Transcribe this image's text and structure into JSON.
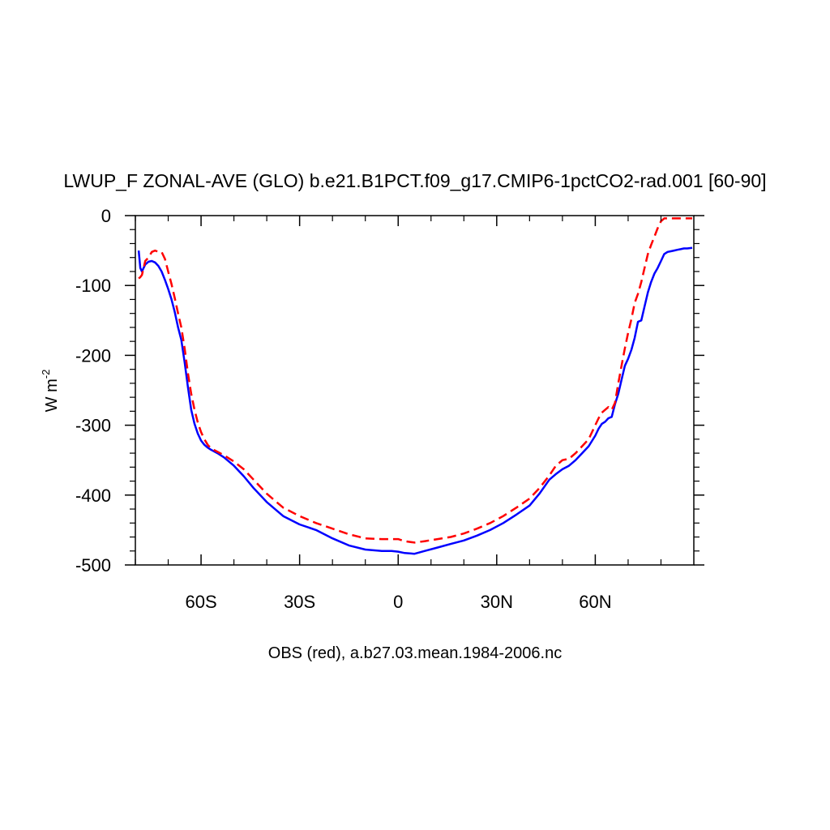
{
  "chart_data": {
    "type": "line",
    "title": "LWUP_F ZONAL-AVE (GLO) b.e21.B1PCT.f09_g17.CMIP6-1pctCO2-rad.001 [60-90]",
    "ylabel": "W m",
    "ylabel_superscript": "-2",
    "footnote": "OBS (red), a.b27.03.mean.1984-2006.nc",
    "xlim": [
      -80,
      90
    ],
    "ylim": [
      -500,
      0
    ],
    "grid": false,
    "x_ticks": [
      {
        "value": -60,
        "label": "60S"
      },
      {
        "value": -30,
        "label": "30S"
      },
      {
        "value": 0,
        "label": "0"
      },
      {
        "value": 30,
        "label": "30N"
      },
      {
        "value": 60,
        "label": "60N"
      }
    ],
    "y_ticks": [
      {
        "value": 0,
        "label": "0"
      },
      {
        "value": -100,
        "label": "-100"
      },
      {
        "value": -200,
        "label": "-200"
      },
      {
        "value": -300,
        "label": "-300"
      },
      {
        "value": -400,
        "label": "-400"
      },
      {
        "value": -500,
        "label": "-500"
      }
    ],
    "series": [
      {
        "color": "#0000ff",
        "dash": "solid",
        "x": [
          -79,
          -78.5,
          -78,
          -77,
          -76,
          -75,
          -74,
          -73,
          -72,
          -71,
          -70,
          -69,
          -68,
          -67,
          -66,
          -65,
          -64,
          -63,
          -62,
          -61,
          -60,
          -59,
          -58,
          -57,
          -55,
          -53,
          -50,
          -47,
          -44,
          -40,
          -35,
          -30,
          -25,
          -20,
          -15,
          -10,
          -5,
          -2,
          0,
          2,
          5,
          8,
          12,
          16,
          20,
          24,
          28,
          32,
          36,
          40,
          43,
          46,
          48,
          50,
          52,
          54,
          56,
          58,
          60,
          61,
          62,
          63,
          64,
          65,
          66,
          67,
          68,
          69,
          70,
          71,
          72,
          73,
          74,
          75,
          76,
          77,
          78,
          79,
          80,
          81,
          82,
          83,
          84,
          85,
          86,
          87,
          88,
          89.5
        ],
        "values": [
          -50,
          -75,
          -80,
          -70,
          -66,
          -65,
          -67,
          -72,
          -80,
          -92,
          -105,
          -120,
          -138,
          -160,
          -178,
          -210,
          -245,
          -278,
          -298,
          -312,
          -322,
          -328,
          -332,
          -335,
          -340,
          -346,
          -358,
          -373,
          -390,
          -410,
          -430,
          -442,
          -450,
          -462,
          -472,
          -478,
          -480,
          -480,
          -481,
          -483,
          -484,
          -480,
          -475,
          -470,
          -465,
          -458,
          -450,
          -440,
          -428,
          -415,
          -398,
          -378,
          -370,
          -363,
          -358,
          -350,
          -340,
          -330,
          -315,
          -305,
          -298,
          -295,
          -290,
          -288,
          -270,
          -255,
          -235,
          -215,
          -205,
          -192,
          -175,
          -152,
          -150,
          -130,
          -110,
          -95,
          -83,
          -75,
          -65,
          -55,
          -52,
          -51,
          -50,
          -49,
          -48,
          -47,
          -47,
          -46
        ]
      },
      {
        "color": "#ff0000",
        "dash": "dashed",
        "x": [
          -79,
          -78.5,
          -78,
          -77,
          -76,
          -75,
          -74,
          -73,
          -72,
          -71,
          -70,
          -69,
          -68,
          -67,
          -66,
          -65,
          -64,
          -63,
          -62,
          -61,
          -60,
          -59,
          -58,
          -57,
          -55,
          -53,
          -50,
          -47,
          -44,
          -40,
          -35,
          -30,
          -25,
          -20,
          -15,
          -10,
          -5,
          -2,
          0,
          2,
          5,
          8,
          12,
          16,
          20,
          24,
          28,
          32,
          36,
          40,
          43,
          46,
          48,
          50,
          52,
          54,
          56,
          58,
          60,
          61,
          62,
          63,
          64,
          65,
          66,
          67,
          68,
          69,
          70,
          71,
          72,
          73,
          74,
          75,
          76,
          77,
          78,
          79,
          80,
          81,
          82,
          83,
          84,
          85,
          86,
          87,
          88,
          89.5
        ],
        "values": [
          -90,
          -88,
          -85,
          -65,
          -60,
          -52,
          -50,
          -52,
          -52,
          -62,
          -80,
          -98,
          -118,
          -140,
          -160,
          -190,
          -225,
          -255,
          -278,
          -296,
          -310,
          -320,
          -328,
          -333,
          -338,
          -343,
          -352,
          -363,
          -378,
          -398,
          -418,
          -430,
          -440,
          -448,
          -456,
          -462,
          -463,
          -463,
          -463,
          -466,
          -468,
          -466,
          -463,
          -460,
          -455,
          -448,
          -440,
          -430,
          -418,
          -405,
          -390,
          -372,
          -358,
          -350,
          -348,
          -340,
          -330,
          -320,
          -300,
          -290,
          -282,
          -278,
          -274,
          -278,
          -268,
          -240,
          -215,
          -190,
          -168,
          -148,
          -125,
          -112,
          -95,
          -75,
          -55,
          -42,
          -30,
          -18,
          -8,
          -4,
          -4,
          -4,
          -4,
          -4,
          -4,
          -4,
          -4,
          -4
        ]
      }
    ]
  }
}
